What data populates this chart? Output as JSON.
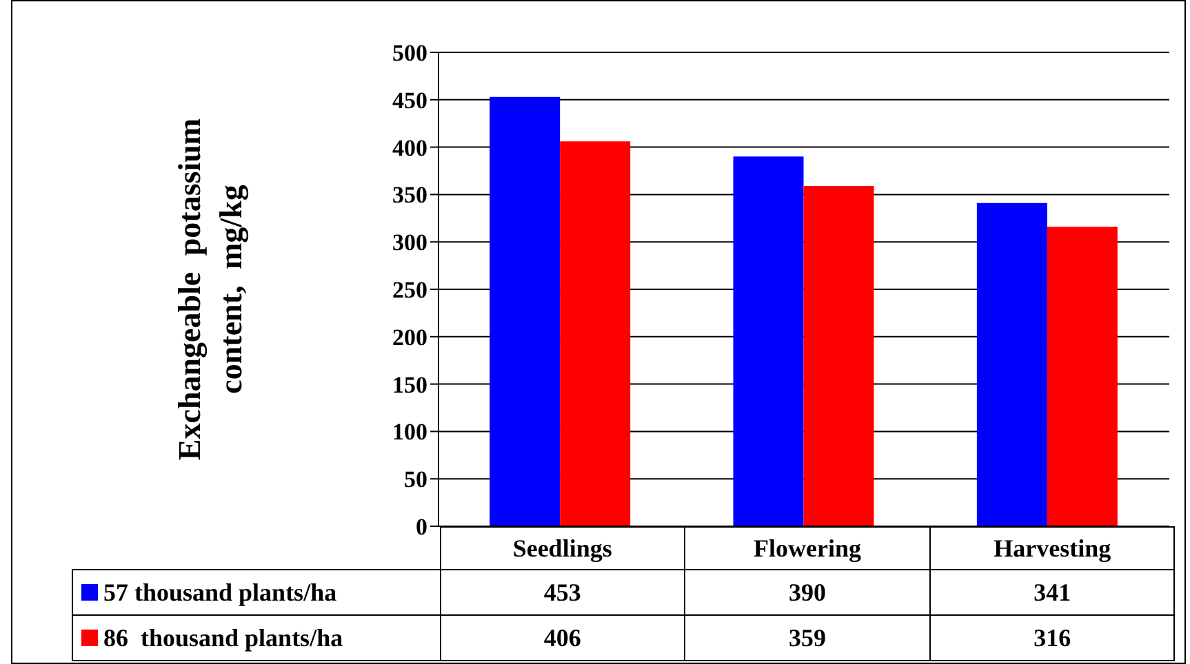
{
  "chart_data": {
    "type": "bar",
    "ylabel": "Exchangeable potassium content, mg/kg",
    "categories": [
      "Seedlings",
      "Flowering",
      "Harvesting"
    ],
    "series": [
      {
        "name": "57 thousand plants/ha",
        "color": "#0000ff",
        "values": [
          453,
          390,
          341
        ]
      },
      {
        "name": "86  thousand plants/ha",
        "color": "#ff0000",
        "values": [
          406,
          359,
          316
        ]
      }
    ],
    "ylim": [
      0,
      500
    ],
    "yticks": [
      0,
      50,
      100,
      150,
      200,
      250,
      300,
      350,
      400,
      450,
      500
    ],
    "grid": "y",
    "legend": "bottom",
    "data_labels": true
  }
}
